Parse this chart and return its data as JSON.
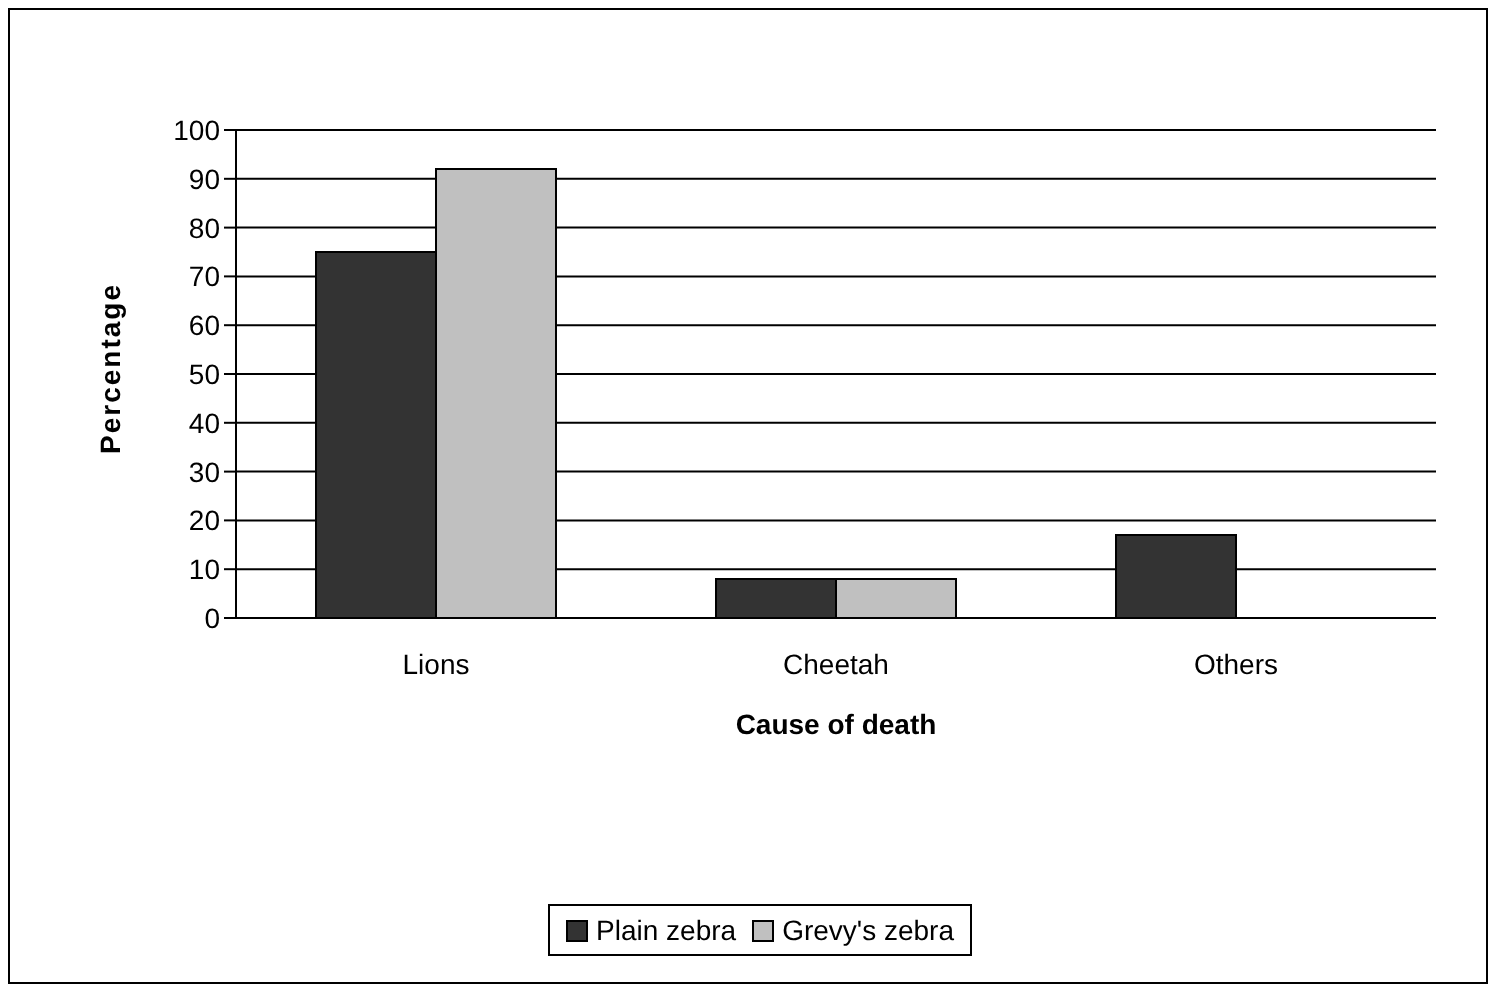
{
  "chart_data": {
    "type": "bar",
    "xlabel": "Cause of death",
    "ylabel": "Percentage",
    "categories": [
      "Lions",
      "Cheetah",
      "Others"
    ],
    "series": [
      {
        "name": "Plain zebra",
        "color": "#333333",
        "values": [
          75,
          8,
          17
        ]
      },
      {
        "name": "Grevy's zebra",
        "color": "#c0c0c0",
        "values": [
          92,
          8,
          null
        ]
      }
    ],
    "ylim": [
      0,
      100
    ],
    "yticks": [
      0,
      10,
      20,
      30,
      40,
      50,
      60,
      70,
      80,
      90,
      100
    ],
    "grid": "y",
    "legend": "bottom"
  }
}
